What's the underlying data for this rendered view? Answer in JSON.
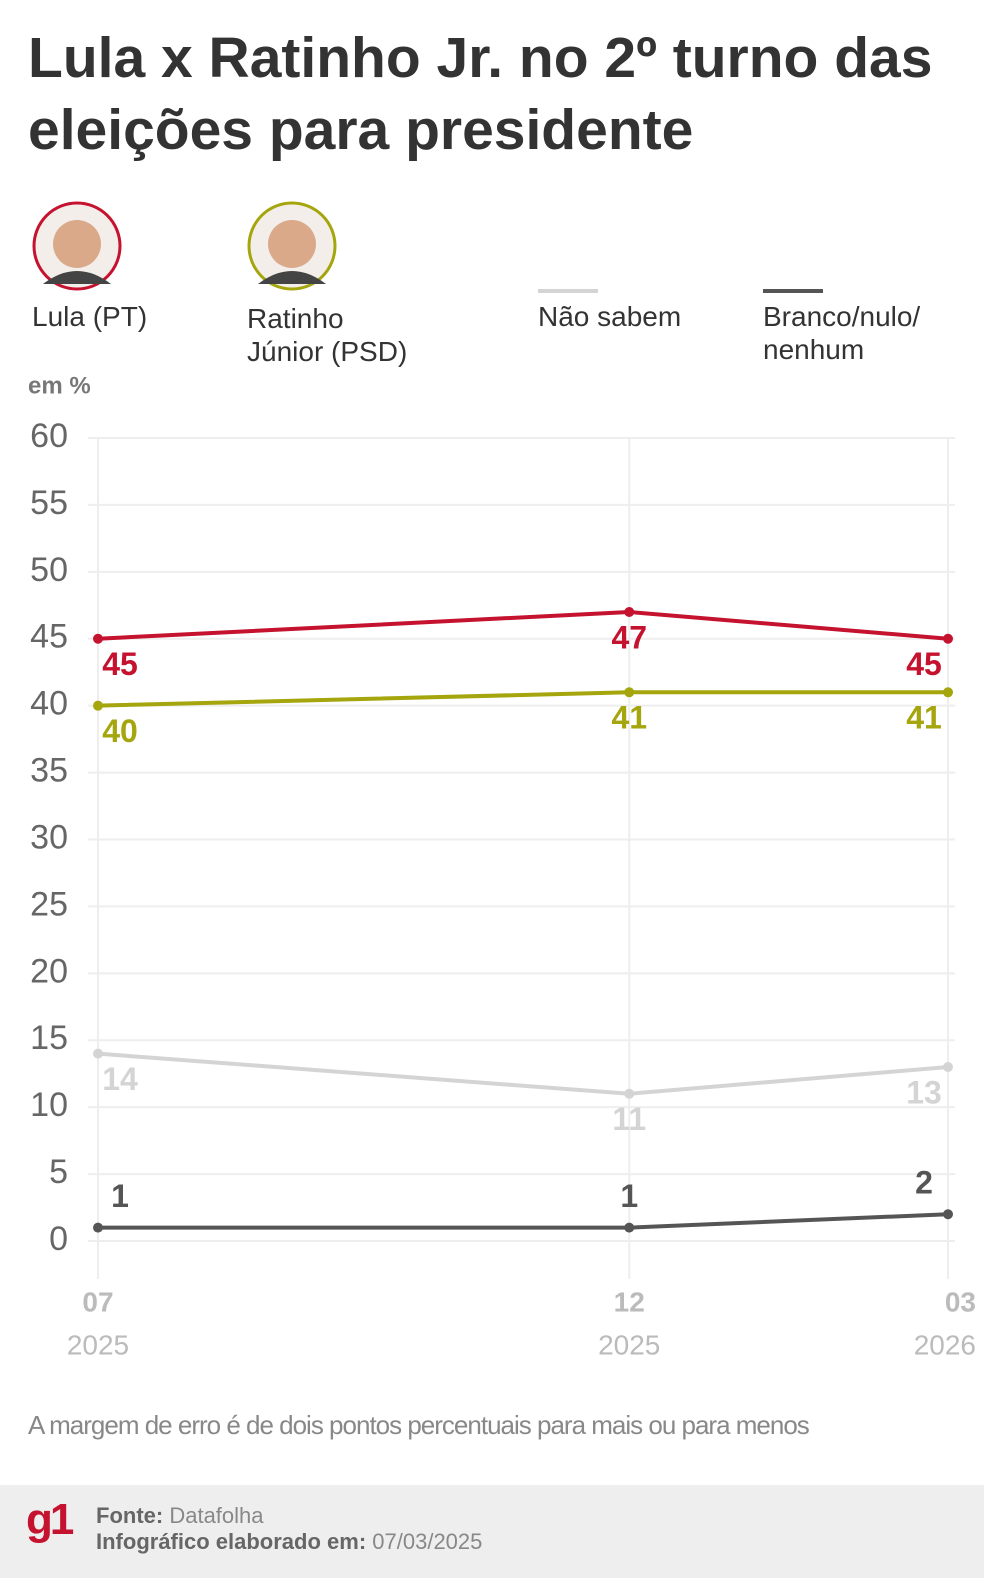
{
  "header": {
    "title": "Lula x Ratinho Jr. no 2º turno das eleições para presidente"
  },
  "chart_data": {
    "type": "line",
    "unit_label": "em %",
    "categories": [
      {
        "month": "07",
        "year": "2025"
      },
      {
        "month": "12",
        "year": "2025"
      },
      {
        "month": "03",
        "year": "2026"
      }
    ],
    "series": [
      {
        "name": "Lula (PT)",
        "color": "#c4122f",
        "values": [
          45,
          47,
          45
        ],
        "label_position": "below"
      },
      {
        "name": "Ratinho Júnior (PSD)",
        "color": "#a5a50e",
        "values": [
          40,
          41,
          41
        ],
        "label_position": "below"
      },
      {
        "name": "Não sabem",
        "color": "#d4d4d4",
        "values": [
          14,
          11,
          13
        ],
        "label_position": "below"
      },
      {
        "name": "Branco/nulo/\nnenhum",
        "color": "#555555",
        "values": [
          1,
          1,
          2
        ],
        "label_position": "above"
      }
    ],
    "ylim": [
      0,
      60
    ],
    "yticks": [
      0,
      5,
      10,
      15,
      20,
      25,
      30,
      35,
      40,
      45,
      50,
      55,
      60
    ],
    "grid": true
  },
  "note": "A margem de erro é de dois pontos percentuais para mais ou para menos",
  "footer": {
    "logo": "g1",
    "source_label": "Fonte:",
    "source": "Datafolha",
    "date_label": "Infográfico elaborado em:",
    "date": "07/03/2025"
  }
}
